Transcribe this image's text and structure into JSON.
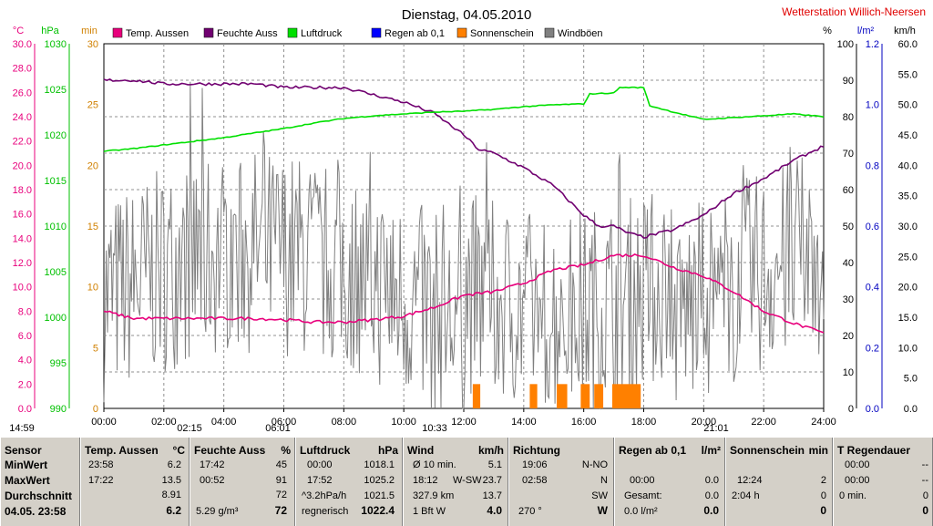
{
  "chart_data": {
    "type": "line",
    "title": "Dienstag, 04.05.2010",
    "station": "Wetterstation Willich-Neersen",
    "x_ticks": [
      "00:00",
      "02:00",
      "04:00",
      "06:00",
      "08:00",
      "10:00",
      "12:00",
      "14:00",
      "16:00",
      "18:00",
      "20:00",
      "22:00",
      "24:00"
    ],
    "axes": [
      {
        "unit": "°C",
        "ticks": [
          "30.0",
          "28.0",
          "26.0",
          "24.0",
          "22.0",
          "20.0",
          "18.0",
          "16.0",
          "14.0",
          "12.0",
          "10.0",
          "8.0",
          "6.0",
          "4.0",
          "2.0",
          "0.0"
        ],
        "range": [
          0,
          30
        ],
        "color": "#e8007c"
      },
      {
        "unit": "hPa",
        "ticks": [
          "1030",
          "1025",
          "1020",
          "1015",
          "1010",
          "1005",
          "1000",
          "995",
          "990"
        ],
        "range": [
          990,
          1030
        ],
        "color": "#00c000"
      },
      {
        "unit": "min",
        "ticks": [
          "30",
          "25",
          "20",
          "15",
          "10",
          "5",
          "0"
        ],
        "range": [
          0,
          30
        ],
        "color": "#d08000"
      },
      {
        "unit": "%",
        "ticks": [
          "100",
          "90",
          "80",
          "70",
          "60",
          "50",
          "40",
          "30",
          "20",
          "10",
          "0"
        ],
        "range": [
          0,
          100
        ],
        "color": "#000000"
      },
      {
        "unit": "l/m²",
        "ticks": [
          "1.2",
          "1.0",
          "0.8",
          "0.6",
          "0.4",
          "0.2",
          "0.0"
        ],
        "range": [
          0,
          1.2
        ],
        "color": "#0000c0"
      },
      {
        "unit": "km/h",
        "ticks": [
          "60.0",
          "55.0",
          "50.0",
          "45.0",
          "40.0",
          "35.0",
          "30.0",
          "25.0",
          "20.0",
          "15.0",
          "10.0",
          "5.0",
          "0.0"
        ],
        "range": [
          0,
          60
        ],
        "color": "#000000"
      }
    ],
    "legend": [
      {
        "name": "Temp. Aussen",
        "color": "#e8007c"
      },
      {
        "name": "Feuchte Auss",
        "color": "#700070"
      },
      {
        "name": "Luftdruck",
        "color": "#00e000"
      },
      {
        "name": "Regen ab 0,1",
        "color": "#0000ff"
      },
      {
        "name": "Sonnenschein",
        "color": "#ff8000"
      },
      {
        "name": "Windböen",
        "color": "#808080"
      }
    ],
    "series": [
      {
        "name": "Temp. Aussen",
        "axis": "°C",
        "color": "#e8007c",
        "x": [
          0,
          1,
          2,
          3,
          4,
          5,
          6,
          7,
          8,
          9,
          10,
          11,
          12,
          13,
          14,
          15,
          16,
          17,
          18,
          19,
          20,
          21,
          22,
          23,
          24
        ],
        "values": [
          8.0,
          7.4,
          7.4,
          7.4,
          7.4,
          7.4,
          7.3,
          7.1,
          7.1,
          7.3,
          7.6,
          8.3,
          9.3,
          9.6,
          10.3,
          11.4,
          11.8,
          12.6,
          12.6,
          11.6,
          10.9,
          9.6,
          8.0,
          7.0,
          6.2
        ]
      },
      {
        "name": "Feuchte Auss",
        "axis": "%",
        "color": "#700070",
        "x": [
          0,
          1,
          2,
          3,
          4,
          5,
          6,
          7,
          8,
          9,
          10,
          11,
          12,
          12.5,
          13,
          14,
          15,
          16,
          16.5,
          17,
          17.5,
          18,
          19,
          20,
          21,
          22,
          23,
          24
        ],
        "values": [
          90,
          90,
          89,
          89,
          89,
          89,
          88,
          88,
          88,
          86,
          84,
          81,
          75,
          71,
          70,
          66,
          61,
          53,
          50,
          50,
          48,
          47,
          49,
          53,
          59,
          63,
          68,
          72
        ]
      },
      {
        "name": "Luftdruck",
        "axis": "hPa",
        "color": "#00e000",
        "x": [
          0,
          1,
          2,
          3,
          4,
          5,
          6,
          7,
          8,
          9,
          10,
          11,
          12,
          13,
          14,
          15,
          16,
          16.2,
          17,
          17.2,
          18,
          18.2,
          19,
          20,
          21,
          22,
          23,
          24
        ],
        "values": [
          1018.2,
          1018.5,
          1018.9,
          1019.3,
          1019.7,
          1020.2,
          1020.7,
          1021.3,
          1021.8,
          1022.1,
          1022.3,
          1022.5,
          1022.6,
          1022.8,
          1023.1,
          1023.3,
          1023.4,
          1024.5,
          1024.6,
          1025.2,
          1025.2,
          1023.2,
          1022.5,
          1021.7,
          1021.9,
          1022.1,
          1022.3,
          1022.0
        ]
      },
      {
        "name": "Sonnenschein",
        "axis": "min",
        "color": "#ff8000",
        "bars": [
          [
            12.3,
            12.55
          ],
          [
            14.2,
            14.45
          ],
          [
            15.1,
            15.45
          ],
          [
            15.9,
            16.2
          ],
          [
            16.35,
            16.65
          ],
          [
            16.95,
            17.9
          ]
        ],
        "value": 2
      },
      {
        "name": "Windböen",
        "axis": "km/h",
        "color": "#808080",
        "note": "gusts ranging roughly 0–55 km/h throughout the day"
      }
    ],
    "markers": [
      {
        "time": "14:59"
      },
      {
        "time": "02:15"
      },
      {
        "time": "06:01"
      },
      {
        "time": "10:33"
      },
      {
        "time": "21:01"
      }
    ]
  },
  "panel": {
    "sensor": {
      "header": "Sensor",
      "rows": [
        "MinWert",
        "MaxWert",
        "Durchschnitt",
        "04.05. 23:58"
      ]
    },
    "temp": {
      "header": "Temp. Aussen",
      "unit": "°C",
      "min_time": "23:58",
      "min": "6.2",
      "max_time": "17:22",
      "max": "13.5",
      "avg": "8.91",
      "current": "6.2"
    },
    "feuchte": {
      "header": "Feuchte Auss",
      "unit": "%",
      "min_time": "17:42",
      "min": "45",
      "max_time": "00:52",
      "max": "91",
      "avg": "72",
      "abs": "5.29 g/m³",
      "current": "72"
    },
    "luftdruck": {
      "header": "Luftdruck",
      "unit": "hPa",
      "min_time": "00:00",
      "min": "1018.1",
      "max_time": "17:52",
      "max": "1025.2",
      "trend": "^3.2hPa/h",
      "avg": "1021.5",
      "status": "regnerisch",
      "current": "1022.4"
    },
    "wind": {
      "header": "Wind",
      "unit": "km/h",
      "r1_label": "Ø 10 min.",
      "r1": "5.1",
      "r2_time": "18:12",
      "r2_dir": "W-SW",
      "r2": "23.7",
      "r3_label": "327.9 km",
      "r3": "13.7",
      "r4_label": "1 Bft W",
      "current": "4.0"
    },
    "richtung": {
      "header": "Richtung",
      "r1_time": "19:06",
      "r1": "N-NO",
      "r2_time": "02:58",
      "r2": "N",
      "r3": "SW",
      "r4_deg": "270 °",
      "current": "W"
    },
    "regen": {
      "header": "Regen ab 0,1",
      "unit": "l/m²",
      "r2_time": "00:00",
      "r2": "0.0",
      "r3_label": "Gesamt:",
      "r3": "0.0",
      "r4_val": "0.0 l/m²",
      "current": "0.0"
    },
    "sonne": {
      "header": "Sonnenschein",
      "unit": "min",
      "r2_time": "12:24",
      "r2": "2",
      "r3_label": "2:04 h",
      "r3": "0",
      "current": "0"
    },
    "regendauer": {
      "header": "T Regendauer",
      "unit": "min",
      "r1_time": "00:00",
      "r1": "--",
      "r2_time": "00:00",
      "r2": "--",
      "r3_label": "0 min.",
      "r3": "0",
      "current": "0"
    }
  }
}
